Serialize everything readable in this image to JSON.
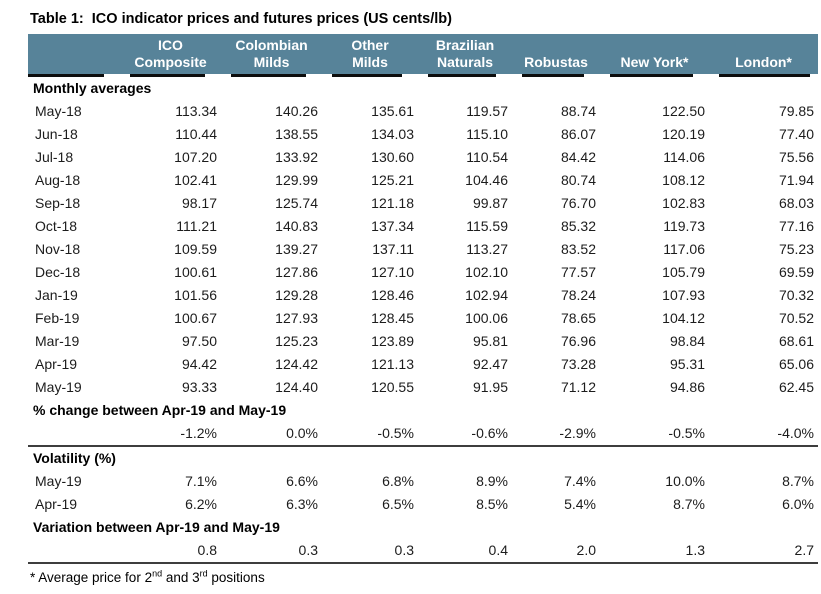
{
  "title": "Table 1:  ICO indicator prices and futures prices (US cents/lb)",
  "colors": {
    "header_bg": "#578399",
    "header_text": "#ffffff",
    "text": "#1c1c1c",
    "rule": "#3d3d3d",
    "underline": "#0d0d0d"
  },
  "table": {
    "columns": [
      {
        "line1": "ICO",
        "line2": "Composite"
      },
      {
        "line1": "Colombian",
        "line2": "Milds"
      },
      {
        "line1": "Other",
        "line2": "Milds"
      },
      {
        "line1": "Brazilian",
        "line2": "Naturals"
      },
      {
        "line1": "",
        "line2": "Robustas"
      },
      {
        "line1": "",
        "line2": "New York*"
      },
      {
        "line1": "",
        "line2": "London*"
      }
    ],
    "sections": [
      {
        "header": "Monthly averages",
        "rows": [
          {
            "label": "May-18",
            "values": [
              "113.34",
              "140.26",
              "135.61",
              "119.57",
              "88.74",
              "122.50",
              "79.85"
            ]
          },
          {
            "label": "Jun-18",
            "values": [
              "110.44",
              "138.55",
              "134.03",
              "115.10",
              "86.07",
              "120.19",
              "77.40"
            ]
          },
          {
            "label": "Jul-18",
            "values": [
              "107.20",
              "133.92",
              "130.60",
              "110.54",
              "84.42",
              "114.06",
              "75.56"
            ]
          },
          {
            "label": "Aug-18",
            "values": [
              "102.41",
              "129.99",
              "125.21",
              "104.46",
              "80.74",
              "108.12",
              "71.94"
            ]
          },
          {
            "label": "Sep-18",
            "values": [
              "98.17",
              "125.74",
              "121.18",
              "99.87",
              "76.70",
              "102.83",
              "68.03"
            ]
          },
          {
            "label": "Oct-18",
            "values": [
              "111.21",
              "140.83",
              "137.34",
              "115.59",
              "85.32",
              "119.73",
              "77.16"
            ]
          },
          {
            "label": "Nov-18",
            "values": [
              "109.59",
              "139.27",
              "137.11",
              "113.27",
              "83.52",
              "117.06",
              "75.23"
            ]
          },
          {
            "label": "Dec-18",
            "values": [
              "100.61",
              "127.86",
              "127.10",
              "102.10",
              "77.57",
              "105.79",
              "69.59"
            ]
          },
          {
            "label": "Jan-19",
            "values": [
              "101.56",
              "129.28",
              "128.46",
              "102.94",
              "78.24",
              "107.93",
              "70.32"
            ]
          },
          {
            "label": "Feb-19",
            "values": [
              "100.67",
              "127.93",
              "128.45",
              "100.06",
              "78.65",
              "104.12",
              "70.52"
            ]
          },
          {
            "label": "Mar-19",
            "values": [
              "97.50",
              "125.23",
              "123.89",
              "95.81",
              "76.96",
              "98.84",
              "68.61"
            ]
          },
          {
            "label": "Apr-19",
            "values": [
              "94.42",
              "124.42",
              "121.13",
              "92.47",
              "73.28",
              "95.31",
              "65.06"
            ]
          },
          {
            "label": "May-19",
            "values": [
              "93.33",
              "124.40",
              "120.55",
              "91.95",
              "71.12",
              "94.86",
              "62.45"
            ]
          }
        ]
      },
      {
        "header": "% change between Apr-19 and May-19",
        "rows": [
          {
            "label": "",
            "values": [
              "-1.2%",
              "0.0%",
              "-0.5%",
              "-0.6%",
              "-2.9%",
              "-0.5%",
              "-4.0%"
            ]
          }
        ]
      },
      {
        "header": "Volatility (%)",
        "rule_above": true,
        "rows": [
          {
            "label": "May-19",
            "values": [
              "7.1%",
              "6.6%",
              "6.8%",
              "8.9%",
              "7.4%",
              "10.0%",
              "8.7%"
            ]
          },
          {
            "label": "Apr-19",
            "values": [
              "6.2%",
              "6.3%",
              "6.5%",
              "8.5%",
              "5.4%",
              "8.7%",
              "6.0%"
            ]
          }
        ]
      },
      {
        "header": "Variation between Apr-19 and May-19",
        "rule_below": true,
        "rows": [
          {
            "label": "",
            "values": [
              "0.8",
              "0.3",
              "0.3",
              "0.4",
              "2.0",
              "1.3",
              "2.7"
            ]
          }
        ]
      }
    ],
    "footnote": {
      "parts": [
        {
          "text": "* Average price for 2"
        },
        {
          "text": "nd",
          "sup": true
        },
        {
          "text": " and 3"
        },
        {
          "text": "rd",
          "sup": true
        },
        {
          "text": " positions"
        }
      ]
    }
  }
}
